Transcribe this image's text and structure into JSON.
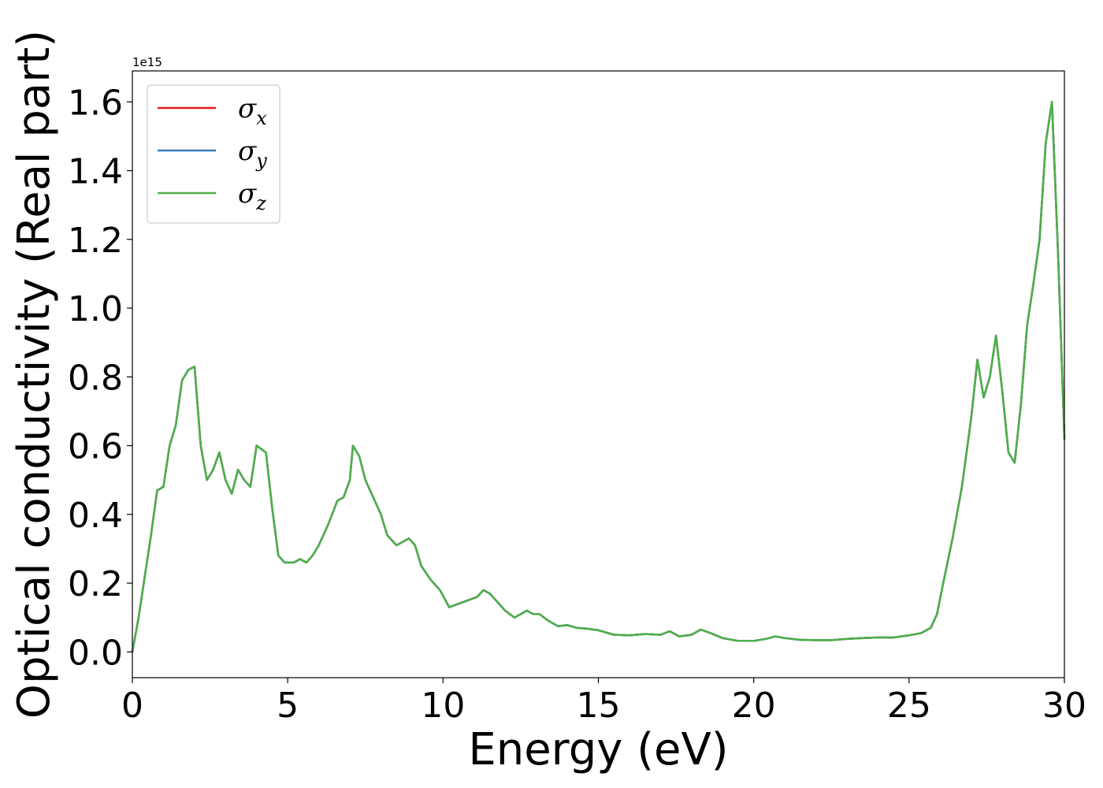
{
  "chart_data": {
    "type": "line",
    "xlabel": "Energy (eV)",
    "ylabel": "Optical conductivity (Real part)",
    "y_offset_label": "1e15",
    "xlim": [
      0,
      30
    ],
    "ylim": [
      -0.075,
      1.69
    ],
    "x_ticks": [
      0,
      5,
      10,
      15,
      20,
      25,
      30
    ],
    "x_tick_labels": [
      "0",
      "5",
      "10",
      "15",
      "20",
      "25",
      "30"
    ],
    "y_ticks": [
      0.0,
      0.2,
      0.4,
      0.6,
      0.8,
      1.0,
      1.2,
      1.4,
      1.6
    ],
    "y_tick_labels": [
      "0.0",
      "0.2",
      "0.4",
      "0.6",
      "0.8",
      "1.0",
      "1.2",
      "1.4",
      "1.6"
    ],
    "grid": false,
    "legend": {
      "position": "top-left",
      "entries": [
        {
          "base": "σ",
          "sub": "x",
          "color": "#e41a1c"
        },
        {
          "base": "σ",
          "sub": "y",
          "color": "#377eb8"
        },
        {
          "base": "σ",
          "sub": "z",
          "color": "#4daf4a"
        }
      ]
    },
    "x": [
      0,
      0.2,
      0.4,
      0.6,
      0.8,
      1.0,
      1.2,
      1.4,
      1.6,
      1.8,
      2.0,
      2.2,
      2.4,
      2.6,
      2.8,
      3.0,
      3.2,
      3.4,
      3.6,
      3.8,
      4.0,
      4.3,
      4.5,
      4.7,
      4.9,
      5.0,
      5.2,
      5.4,
      5.6,
      5.8,
      6.0,
      6.3,
      6.6,
      6.8,
      7.0,
      7.1,
      7.3,
      7.5,
      7.8,
      8.0,
      8.2,
      8.5,
      8.7,
      8.9,
      9.1,
      9.3,
      9.6,
      9.9,
      10.2,
      10.5,
      10.8,
      11.1,
      11.3,
      11.5,
      11.7,
      12.0,
      12.3,
      12.5,
      12.7,
      12.9,
      13.1,
      13.4,
      13.7,
      14.0,
      14.3,
      14.6,
      15.0,
      15.5,
      16.0,
      16.5,
      17.0,
      17.3,
      17.6,
      18.0,
      18.3,
      18.6,
      19.0,
      19.5,
      20.0,
      20.4,
      20.7,
      21.0,
      21.5,
      22.0,
      22.5,
      23.0,
      23.5,
      24.0,
      24.5,
      25.0,
      25.4,
      25.7,
      25.9,
      26.1,
      26.4,
      26.7,
      27.0,
      27.2,
      27.4,
      27.6,
      27.8,
      28.0,
      28.2,
      28.4,
      28.6,
      28.8,
      29.0,
      29.2,
      29.4,
      29.6,
      29.8,
      30.0
    ],
    "series": [
      {
        "name": "σx",
        "color": "#e41a1c",
        "values": [
          0.0,
          0.1,
          0.22,
          0.34,
          0.47,
          0.48,
          0.6,
          0.66,
          0.79,
          0.82,
          0.83,
          0.6,
          0.5,
          0.53,
          0.58,
          0.5,
          0.46,
          0.53,
          0.5,
          0.48,
          0.6,
          0.58,
          0.42,
          0.28,
          0.26,
          0.26,
          0.26,
          0.27,
          0.26,
          0.28,
          0.31,
          0.37,
          0.44,
          0.45,
          0.5,
          0.6,
          0.57,
          0.5,
          0.44,
          0.4,
          0.34,
          0.31,
          0.32,
          0.33,
          0.31,
          0.25,
          0.21,
          0.18,
          0.13,
          0.14,
          0.15,
          0.16,
          0.18,
          0.17,
          0.15,
          0.12,
          0.1,
          0.11,
          0.12,
          0.11,
          0.11,
          0.09,
          0.075,
          0.078,
          0.07,
          0.068,
          0.063,
          0.05,
          0.048,
          0.052,
          0.05,
          0.06,
          0.045,
          0.05,
          0.065,
          0.055,
          0.04,
          0.032,
          0.032,
          0.038,
          0.045,
          0.04,
          0.035,
          0.034,
          0.034,
          0.038,
          0.04,
          0.042,
          0.042,
          0.048,
          0.055,
          0.07,
          0.11,
          0.2,
          0.33,
          0.48,
          0.68,
          0.85,
          0.74,
          0.8,
          0.92,
          0.76,
          0.58,
          0.55,
          0.72,
          0.95,
          1.07,
          1.2,
          1.48,
          1.6,
          1.15,
          0.62
        ]
      },
      {
        "name": "σy",
        "color": "#377eb8",
        "values": [
          0.0,
          0.1,
          0.22,
          0.34,
          0.47,
          0.48,
          0.6,
          0.66,
          0.79,
          0.82,
          0.83,
          0.6,
          0.5,
          0.53,
          0.58,
          0.5,
          0.46,
          0.53,
          0.5,
          0.48,
          0.6,
          0.58,
          0.42,
          0.28,
          0.26,
          0.26,
          0.26,
          0.27,
          0.26,
          0.28,
          0.31,
          0.37,
          0.44,
          0.45,
          0.5,
          0.6,
          0.57,
          0.5,
          0.44,
          0.4,
          0.34,
          0.31,
          0.32,
          0.33,
          0.31,
          0.25,
          0.21,
          0.18,
          0.13,
          0.14,
          0.15,
          0.16,
          0.18,
          0.17,
          0.15,
          0.12,
          0.1,
          0.11,
          0.12,
          0.11,
          0.11,
          0.09,
          0.075,
          0.078,
          0.07,
          0.068,
          0.063,
          0.05,
          0.048,
          0.052,
          0.05,
          0.06,
          0.045,
          0.05,
          0.065,
          0.055,
          0.04,
          0.032,
          0.032,
          0.038,
          0.045,
          0.04,
          0.035,
          0.034,
          0.034,
          0.038,
          0.04,
          0.042,
          0.042,
          0.048,
          0.055,
          0.07,
          0.11,
          0.2,
          0.33,
          0.48,
          0.68,
          0.85,
          0.74,
          0.8,
          0.92,
          0.76,
          0.58,
          0.55,
          0.72,
          0.95,
          1.07,
          1.2,
          1.48,
          1.6,
          1.15,
          0.62
        ]
      },
      {
        "name": "σz",
        "color": "#4daf4a",
        "values": [
          0.0,
          0.1,
          0.22,
          0.34,
          0.47,
          0.48,
          0.6,
          0.66,
          0.79,
          0.82,
          0.83,
          0.6,
          0.5,
          0.53,
          0.58,
          0.5,
          0.46,
          0.53,
          0.5,
          0.48,
          0.6,
          0.58,
          0.42,
          0.28,
          0.26,
          0.26,
          0.26,
          0.27,
          0.26,
          0.28,
          0.31,
          0.37,
          0.44,
          0.45,
          0.5,
          0.6,
          0.57,
          0.5,
          0.44,
          0.4,
          0.34,
          0.31,
          0.32,
          0.33,
          0.31,
          0.25,
          0.21,
          0.18,
          0.13,
          0.14,
          0.15,
          0.16,
          0.18,
          0.17,
          0.15,
          0.12,
          0.1,
          0.11,
          0.12,
          0.11,
          0.11,
          0.09,
          0.075,
          0.078,
          0.07,
          0.068,
          0.063,
          0.05,
          0.048,
          0.052,
          0.05,
          0.06,
          0.045,
          0.05,
          0.065,
          0.055,
          0.04,
          0.032,
          0.032,
          0.038,
          0.045,
          0.04,
          0.035,
          0.034,
          0.034,
          0.038,
          0.04,
          0.042,
          0.042,
          0.048,
          0.055,
          0.07,
          0.11,
          0.2,
          0.33,
          0.48,
          0.68,
          0.85,
          0.74,
          0.8,
          0.92,
          0.76,
          0.58,
          0.55,
          0.72,
          0.95,
          1.07,
          1.2,
          1.48,
          1.6,
          1.15,
          0.62
        ]
      }
    ]
  }
}
